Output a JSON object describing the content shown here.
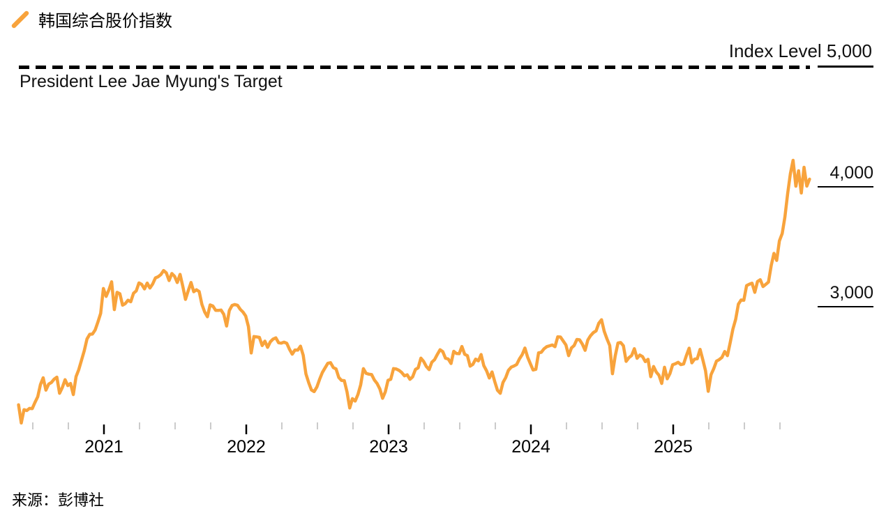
{
  "legend": {
    "label": "韩国综合股价指数"
  },
  "source": {
    "label": "来源：彭博社"
  },
  "chart_data": {
    "type": "line",
    "title": "韩国综合股价指数",
    "line_color": "#F8A33C",
    "target_line": {
      "value": 5000,
      "label": "Index Level 5,000",
      "sublabel": "President Lee Jae Myung's Target",
      "style": "dashed"
    },
    "y_axis": {
      "side": "right",
      "ticks": [
        {
          "label": "4,000",
          "value": 4000
        },
        {
          "label": "3,000",
          "value": 3000
        }
      ]
    },
    "x_axis": {
      "major_ticks": [
        {
          "label": "2021",
          "t": 2021
        },
        {
          "label": "2022",
          "t": 2022
        },
        {
          "label": "2023",
          "t": 2023
        },
        {
          "label": "2024",
          "t": 2024
        },
        {
          "label": "2025",
          "t": 2025
        }
      ],
      "minor_ticks": [
        2020.5,
        2020.75,
        2021.25,
        2021.5,
        2021.75,
        2022.25,
        2022.5,
        2022.75,
        2023.25,
        2023.5,
        2023.75,
        2024.25,
        2024.5,
        2024.75,
        2025.25,
        2025.5,
        2025.75
      ]
    },
    "series": [
      {
        "name": "韩国综合股价指数 (KOSPI)",
        "start_year": 2020.4,
        "step_years": 0.019231,
        "values": [
          2182,
          2030,
          2141,
          2134,
          2152,
          2150,
          2201,
          2249,
          2351,
          2407,
          2304,
          2354,
          2368,
          2396,
          2412,
          2278,
          2327,
          2391,
          2342,
          2360,
          2267,
          2417,
          2475,
          2553,
          2633,
          2731,
          2770,
          2772,
          2806,
          2873,
          2944,
          3152,
          3086,
          3140,
          3208,
          2976,
          3120,
          3108,
          3013,
          3026,
          3054,
          3041,
          3112,
          3132,
          3198,
          3186,
          3148,
          3197,
          3156,
          3189,
          3240,
          3250,
          3268,
          3302,
          3282,
          3218,
          3277,
          3254,
          3202,
          3270,
          3171,
          3061,
          3133,
          3202,
          3125,
          3141,
          3126,
          3020,
          2956,
          2916,
          3015,
          3006,
          2970,
          2969,
          2972,
          2936,
          2839,
          2968,
          3010,
          3018,
          3012,
          2978,
          2955,
          2922,
          2834,
          2614,
          2751,
          2748,
          2744,
          2676,
          2713,
          2661,
          2707,
          2730,
          2740,
          2700,
          2696,
          2704,
          2695,
          2644,
          2604,
          2639,
          2638,
          2671,
          2596,
          2440,
          2366,
          2306,
          2292,
          2330,
          2394,
          2452,
          2490,
          2528,
          2533,
          2492,
          2481,
          2410,
          2385,
          2383,
          2290,
          2155,
          2233,
          2213,
          2268,
          2348,
          2483,
          2444,
          2437,
          2434,
          2389,
          2360,
          2314,
          2236,
          2290,
          2386,
          2395,
          2484,
          2480,
          2469,
          2451,
          2423,
          2432,
          2394,
          2415,
          2477,
          2490,
          2571,
          2544,
          2501,
          2475,
          2537,
          2558,
          2601,
          2641,
          2625,
          2570,
          2564,
          2526,
          2628,
          2610,
          2608,
          2668,
          2603,
          2591,
          2504,
          2519,
          2563,
          2548,
          2601,
          2508,
          2465,
          2405,
          2456,
          2375,
          2303,
          2278,
          2368,
          2409,
          2470,
          2496,
          2505,
          2518,
          2564,
          2600,
          2655,
          2579,
          2525,
          2472,
          2478,
          2615,
          2620,
          2649,
          2667,
          2674,
          2681,
          2666,
          2749,
          2747,
          2714,
          2681,
          2592,
          2656,
          2676,
          2727,
          2724,
          2687,
          2636,
          2722,
          2758,
          2784,
          2798,
          2862,
          2891,
          2795,
          2731,
          2676,
          2441,
          2588,
          2697,
          2701,
          2674,
          2544,
          2575,
          2593,
          2650,
          2570,
          2597,
          2583,
          2542,
          2561,
          2416,
          2501,
          2455,
          2428,
          2360,
          2495,
          2399,
          2442,
          2516,
          2524,
          2536,
          2517,
          2522,
          2591,
          2654,
          2532,
          2563,
          2566,
          2644,
          2558,
          2466,
          2294,
          2433,
          2484,
          2546,
          2559,
          2577,
          2626,
          2592,
          2698,
          2812,
          2895,
          3021,
          3056,
          3054,
          3176,
          3188,
          3196,
          3120,
          3210,
          3225,
          3168,
          3186,
          3205,
          3344,
          3445,
          3386,
          3549,
          3610,
          3748,
          3942,
          4108,
          4221,
          4005,
          4134,
          3948,
          4163,
          4006,
          4064
        ]
      }
    ]
  }
}
